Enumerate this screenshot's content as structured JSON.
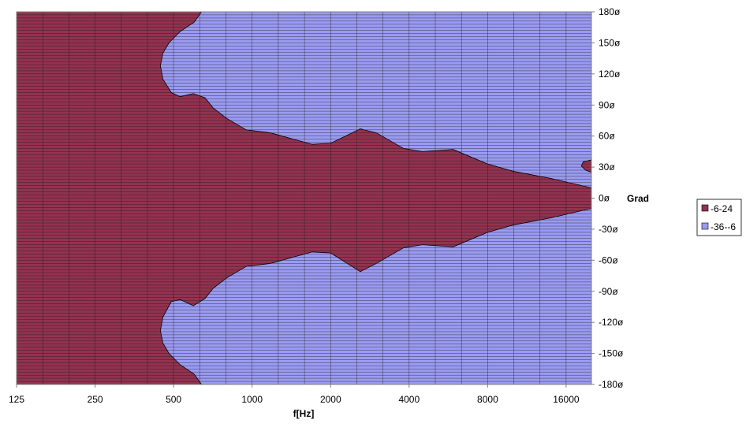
{
  "chart_data": {
    "type": "area",
    "subtype": "polar-contour",
    "title": "",
    "xlabel": "f[Hz]",
    "ylabel": "Grad",
    "x_scale": "log2",
    "xlim": [
      125,
      20000
    ],
    "ylim": [
      -180,
      180
    ],
    "x_tick_labels": [
      "125",
      "250",
      "500",
      "1000",
      "2000",
      "4000",
      "8000",
      "16000"
    ],
    "x_tick_values": [
      125,
      250,
      500,
      1000,
      2000,
      4000,
      8000,
      16000
    ],
    "y_tick_labels": [
      "180ø",
      "150ø",
      "120ø",
      "90ø",
      "60ø",
      "30ø",
      "0ø",
      "-30ø",
      "-60ø",
      "-90ø",
      "-120ø",
      "-150ø",
      "-180ø"
    ],
    "y_tick_values": [
      180,
      150,
      120,
      90,
      60,
      30,
      0,
      -30,
      -60,
      -90,
      -120,
      -150,
      -180
    ],
    "grid": true,
    "legend_position": "right",
    "series": [
      {
        "name": "-6-24",
        "color": "#933250"
      },
      {
        "name": "-36--6",
        "color": "#9b9bf2"
      }
    ],
    "upper_boundary": [
      {
        "f": 640,
        "deg": 180
      },
      {
        "f": 600,
        "deg": 170
      },
      {
        "f": 530,
        "deg": 161
      },
      {
        "f": 480,
        "deg": 150
      },
      {
        "f": 455,
        "deg": 140
      },
      {
        "f": 445,
        "deg": 128
      },
      {
        "f": 455,
        "deg": 115
      },
      {
        "f": 490,
        "deg": 102
      },
      {
        "f": 530,
        "deg": 98
      },
      {
        "f": 595,
        "deg": 101
      },
      {
        "f": 660,
        "deg": 97
      },
      {
        "f": 710,
        "deg": 87
      },
      {
        "f": 800,
        "deg": 77
      },
      {
        "f": 950,
        "deg": 66
      },
      {
        "f": 1180,
        "deg": 63
      },
      {
        "f": 1700,
        "deg": 52
      },
      {
        "f": 2000,
        "deg": 53
      },
      {
        "f": 2600,
        "deg": 67
      },
      {
        "f": 3000,
        "deg": 63
      },
      {
        "f": 3800,
        "deg": 48
      },
      {
        "f": 4500,
        "deg": 45
      },
      {
        "f": 5900,
        "deg": 47
      },
      {
        "f": 8000,
        "deg": 33
      },
      {
        "f": 10000,
        "deg": 26
      },
      {
        "f": 14000,
        "deg": 19
      },
      {
        "f": 20000,
        "deg": 10
      }
    ],
    "lower_boundary": [
      {
        "f": 20000,
        "deg": -10
      },
      {
        "f": 14000,
        "deg": -19
      },
      {
        "f": 10000,
        "deg": -26
      },
      {
        "f": 8000,
        "deg": -33
      },
      {
        "f": 5900,
        "deg": -47
      },
      {
        "f": 4500,
        "deg": -45
      },
      {
        "f": 3800,
        "deg": -48
      },
      {
        "f": 3000,
        "deg": -63
      },
      {
        "f": 2600,
        "deg": -71
      },
      {
        "f": 2000,
        "deg": -53
      },
      {
        "f": 1700,
        "deg": -52
      },
      {
        "f": 1180,
        "deg": -63
      },
      {
        "f": 950,
        "deg": -66
      },
      {
        "f": 800,
        "deg": -77
      },
      {
        "f": 710,
        "deg": -87
      },
      {
        "f": 660,
        "deg": -97
      },
      {
        "f": 595,
        "deg": -104
      },
      {
        "f": 530,
        "deg": -98
      },
      {
        "f": 490,
        "deg": -100
      },
      {
        "f": 455,
        "deg": -115
      },
      {
        "f": 445,
        "deg": -128
      },
      {
        "f": 455,
        "deg": -140
      },
      {
        "f": 480,
        "deg": -150
      },
      {
        "f": 530,
        "deg": -161
      },
      {
        "f": 600,
        "deg": -170
      },
      {
        "f": 640,
        "deg": -180
      }
    ],
    "small_island": [
      {
        "f": 19000,
        "deg": 27
      },
      {
        "f": 18300,
        "deg": 31
      },
      {
        "f": 18600,
        "deg": 35
      },
      {
        "f": 20000,
        "deg": 37
      },
      {
        "f": 20000,
        "deg": 25
      }
    ]
  }
}
